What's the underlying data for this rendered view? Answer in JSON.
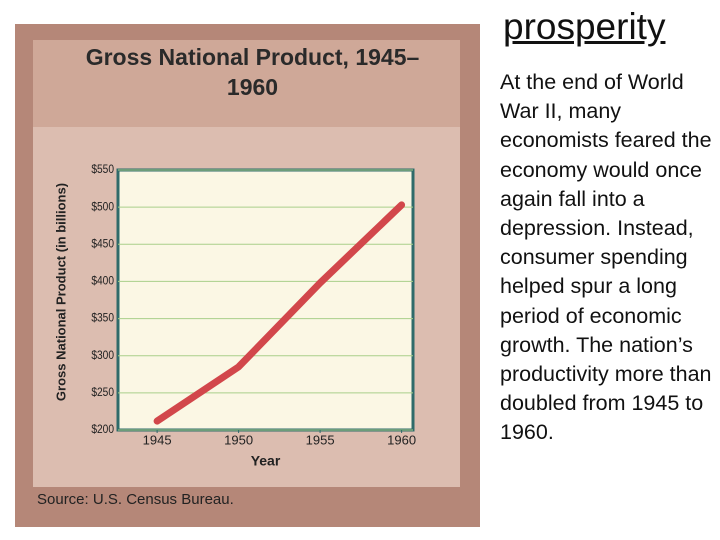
{
  "heading": "prosperity",
  "body": "At the end of World War II, many economists feared the economy would once again fall into a depression. Instead, consumer spending helped spur a long period of economic growth. The nation’s productivity more than doubled from 1945 to 1960.",
  "chart_data": {
    "type": "line",
    "title": "Gross National Product, 1945–1960",
    "ylabel": "Gross National Product (in billions)",
    "xlabel": "Year",
    "source": "Source: U.S. Census Bureau.",
    "x": [
      1945,
      1950,
      1955,
      1960
    ],
    "series": [
      {
        "name": "Gross National Product",
        "color": "#d2474b",
        "values": [
          212,
          285,
          398,
          503
        ]
      }
    ],
    "xlim": [
      1942.6,
      1960.7
    ],
    "xticks": [
      1945,
      1950,
      1955,
      1960
    ],
    "ylim": [
      200,
      550
    ],
    "yticks": [
      {
        "value": 200,
        "label": "$200"
      },
      {
        "value": 250,
        "label": "$250"
      },
      {
        "value": 300,
        "label": "$300"
      },
      {
        "value": 350,
        "label": "$350"
      },
      {
        "value": 400,
        "label": "$400"
      },
      {
        "value": 450,
        "label": "$450"
      },
      {
        "value": 500,
        "label": "$500"
      },
      {
        "value": 550,
        "label": "$550"
      }
    ],
    "grid": true
  }
}
